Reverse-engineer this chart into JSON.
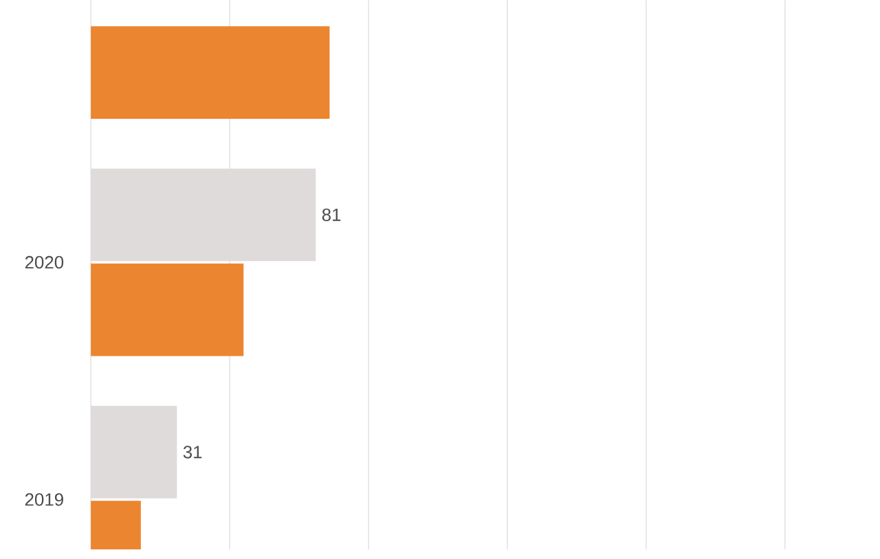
{
  "chart_data": {
    "type": "bar",
    "orientation": "horizontal",
    "categories": [
      null,
      "2020",
      "2019"
    ],
    "series": [
      {
        "color": "#e0dbdb",
        "values": [
          null,
          81,
          31
        ],
        "value_labels": [
          null,
          "81",
          "31"
        ]
      },
      {
        "color": "#ec8530",
        "values": [
          86,
          55,
          18
        ]
      }
    ],
    "ref_lines": [
      {
        "axis": "x",
        "value": 50,
        "color": "#d9d9d9"
      },
      {
        "axis": "x",
        "value": 100,
        "color": "#d9d9d9"
      },
      {
        "axis": "x",
        "value": 150,
        "color": "#d9d9d9"
      },
      {
        "axis": "x",
        "value": 200,
        "color": "#d9d9d9"
      },
      {
        "axis": "x",
        "value": 250,
        "color": "#d9d9d9"
      }
    ]
  }
}
